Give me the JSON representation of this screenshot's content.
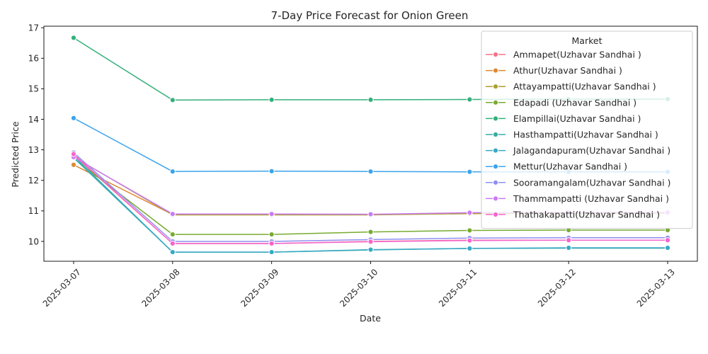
{
  "chart_data": {
    "type": "line",
    "title": "7-Day Price Forecast for Onion Green",
    "xlabel": "Date",
    "ylabel": "Predicted Price",
    "x": [
      "2025-03-07",
      "2025-03-08",
      "2025-03-09",
      "2025-03-10",
      "2025-03-11",
      "2025-03-12",
      "2025-03-13"
    ],
    "yticks": [
      10,
      11,
      12,
      13,
      14,
      15,
      16,
      17
    ],
    "ylim": [
      9.35,
      17.05
    ],
    "grid": false,
    "legend": {
      "title": "Market",
      "placement": "top-right"
    },
    "series": [
      {
        "name": "Ammapet(Uzhavar Sandhai )",
        "color": "#f77189",
        "values": [
          12.83,
          9.93,
          9.93,
          10.0,
          10.04,
          10.04,
          10.04
        ]
      },
      {
        "name": "Athur(Uzhavar Sandhai )",
        "color": "#dc8932",
        "values": [
          12.51,
          10.88,
          10.88,
          10.88,
          10.92,
          10.93,
          10.93
        ]
      },
      {
        "name": "Attayampatti(Uzhavar Sandhai )",
        "color": "#ae9d31",
        "values": [
          12.77,
          10.87,
          10.87,
          10.87,
          10.91,
          10.92,
          10.92
        ]
      },
      {
        "name": "Edapadi (Uzhavar Sandhai )",
        "color": "#77ab31",
        "values": [
          12.72,
          10.23,
          10.23,
          10.31,
          10.36,
          10.37,
          10.37
        ]
      },
      {
        "name": "Elampillai(Uzhavar Sandhai )",
        "color": "#33b07a",
        "values": [
          16.67,
          14.63,
          14.64,
          14.64,
          14.65,
          14.66,
          14.66
        ]
      },
      {
        "name": "Hasthampatti(Uzhavar Sandhai )",
        "color": "#36ada4",
        "values": [
          12.74,
          9.65,
          9.65,
          9.72,
          9.77,
          9.78,
          9.78
        ]
      },
      {
        "name": "Jalagandapuram(Uzhavar Sandhai )",
        "color": "#38a9c5",
        "values": [
          12.8,
          9.65,
          9.65,
          9.73,
          9.77,
          9.79,
          9.79
        ]
      },
      {
        "name": "Mettur(Uzhavar Sandhai )",
        "color": "#3ba3ec",
        "values": [
          14.04,
          12.29,
          12.3,
          12.29,
          12.28,
          12.28,
          12.28
        ]
      },
      {
        "name": "Sooramangalam(Uzhavar Sandhai )",
        "color": "#8e8ff0",
        "values": [
          12.91,
          10.0,
          10.0,
          10.06,
          10.11,
          10.12,
          10.12
        ]
      },
      {
        "name": "Thammampatti (Uzhavar Sandhai )",
        "color": "#cc7af4",
        "values": [
          12.76,
          10.9,
          10.9,
          10.89,
          10.94,
          10.95,
          10.95
        ]
      },
      {
        "name": "Thathakapatti(Uzhavar Sandhai )",
        "color": "#f565cc",
        "values": [
          12.86,
          9.93,
          9.93,
          9.99,
          10.03,
          10.04,
          10.04
        ]
      }
    ]
  }
}
